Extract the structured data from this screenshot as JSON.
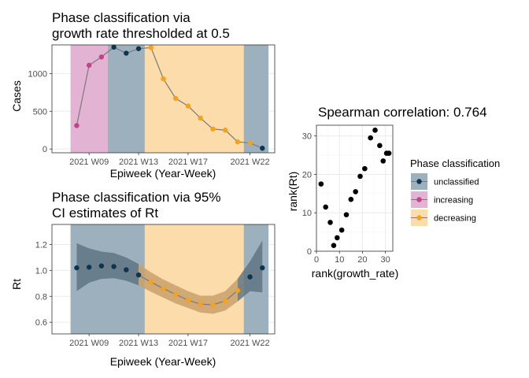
{
  "colors": {
    "unclassified": "#0b3551",
    "increasing": "#c2428c",
    "decreasing": "#f5a21c",
    "unclassified_band": "#9db0bd",
    "increasing_band": "#e2b3d3",
    "decreasing_band": "#fcdcaa",
    "line": "#7a7a7a",
    "ribbon_unclassified": "#607684",
    "ribbon_decreasing": "#c9a06b",
    "grid": "#ebebeb",
    "panel_border": "#333333"
  },
  "chart_data": [
    {
      "id": "phase-growth",
      "type": "line",
      "title": [
        "Phase classification via",
        "growth rate thresholded at 0.5"
      ],
      "xlabel": "Epiweek (Year-Week)",
      "ylabel": "Cases",
      "x_ticks": [
        {
          "week": 9,
          "label": "2021 W09"
        },
        {
          "week": 13,
          "label": "2021 W13"
        },
        {
          "week": 17,
          "label": "2021 W17"
        },
        {
          "week": 22,
          "label": "2021 W22"
        }
      ],
      "xlim": [
        6,
        24
      ],
      "ylim": [
        -50,
        1380
      ],
      "y_ticks": [
        0,
        500,
        1000
      ],
      "grid": true,
      "phase_bands": [
        {
          "from": 7.5,
          "to": 10.5,
          "phase": "increasing"
        },
        {
          "from": 10.5,
          "to": 13.5,
          "phase": "unclassified"
        },
        {
          "from": 13.5,
          "to": 21.5,
          "phase": "decreasing"
        },
        {
          "from": 21.5,
          "to": 23.5,
          "phase": "unclassified"
        }
      ],
      "points": [
        {
          "x": 8,
          "y": 310,
          "phase": "increasing"
        },
        {
          "x": 9,
          "y": 1110,
          "phase": "increasing"
        },
        {
          "x": 10,
          "y": 1220,
          "phase": "increasing"
        },
        {
          "x": 11,
          "y": 1350,
          "phase": "unclassified"
        },
        {
          "x": 12,
          "y": 1270,
          "phase": "unclassified"
        },
        {
          "x": 13,
          "y": 1330,
          "phase": "unclassified"
        },
        {
          "x": 14,
          "y": 1345,
          "phase": "decreasing"
        },
        {
          "x": 15,
          "y": 930,
          "phase": "decreasing"
        },
        {
          "x": 16,
          "y": 670,
          "phase": "decreasing"
        },
        {
          "x": 17,
          "y": 570,
          "phase": "decreasing"
        },
        {
          "x": 18,
          "y": 410,
          "phase": "decreasing"
        },
        {
          "x": 19,
          "y": 265,
          "phase": "decreasing"
        },
        {
          "x": 20,
          "y": 250,
          "phase": "decreasing"
        },
        {
          "x": 21,
          "y": 95,
          "phase": "decreasing"
        },
        {
          "x": 22,
          "y": 80,
          "phase": "decreasing"
        },
        {
          "x": 23,
          "y": 10,
          "phase": "unclassified"
        }
      ]
    },
    {
      "id": "phase-rt",
      "type": "line",
      "title": [
        "Phase classification via 95%",
        "CI estimates of Rt"
      ],
      "xlabel": "Epiweek (Year-Week)",
      "ylabel": "Rt",
      "x_ticks": [
        {
          "week": 9,
          "label": "2021 W09"
        },
        {
          "week": 13,
          "label": "2021 W13"
        },
        {
          "week": 17,
          "label": "2021 W17"
        },
        {
          "week": 22,
          "label": "2021 W22"
        }
      ],
      "xlim": [
        6,
        24
      ],
      "ylim": [
        0.51,
        1.355
      ],
      "y_ticks": [
        0.6,
        0.8,
        1.0,
        1.2
      ],
      "y_tick_labels": [
        "0.6",
        "0.8",
        "1.0",
        "1.2"
      ],
      "grid": true,
      "phase_bands": [
        {
          "from": 7.5,
          "to": 13.5,
          "phase": "unclassified"
        },
        {
          "from": 13.5,
          "to": 21.5,
          "phase": "decreasing"
        },
        {
          "from": 21.5,
          "to": 23.5,
          "phase": "unclassified"
        }
      ],
      "points": [
        {
          "x": 8,
          "y": 1.02,
          "lo": 0.84,
          "hi": 1.21,
          "phase": "unclassified"
        },
        {
          "x": 9,
          "y": 1.025,
          "lo": 0.905,
          "hi": 1.17,
          "phase": "unclassified"
        },
        {
          "x": 10,
          "y": 1.035,
          "lo": 0.935,
          "hi": 1.145,
          "phase": "unclassified"
        },
        {
          "x": 11,
          "y": 1.03,
          "lo": 0.94,
          "hi": 1.135,
          "phase": "unclassified"
        },
        {
          "x": 12,
          "y": 1.005,
          "lo": 0.92,
          "hi": 1.1,
          "phase": "unclassified"
        },
        {
          "x": 13,
          "y": 0.965,
          "lo": 0.885,
          "hi": 1.05,
          "phase": "unclassified"
        },
        {
          "x": 14,
          "y": 0.91,
          "lo": 0.835,
          "hi": 0.985,
          "phase": "decreasing"
        },
        {
          "x": 15,
          "y": 0.86,
          "lo": 0.79,
          "hi": 0.93,
          "phase": "decreasing"
        },
        {
          "x": 16,
          "y": 0.815,
          "lo": 0.745,
          "hi": 0.885,
          "phase": "decreasing"
        },
        {
          "x": 17,
          "y": 0.77,
          "lo": 0.71,
          "hi": 0.84,
          "phase": "decreasing"
        },
        {
          "x": 18,
          "y": 0.74,
          "lo": 0.675,
          "hi": 0.805,
          "phase": "decreasing"
        },
        {
          "x": 19,
          "y": 0.735,
          "lo": 0.665,
          "hi": 0.805,
          "phase": "decreasing"
        },
        {
          "x": 20,
          "y": 0.765,
          "lo": 0.69,
          "hi": 0.84,
          "phase": "decreasing"
        },
        {
          "x": 21,
          "y": 0.845,
          "lo": 0.76,
          "hi": 0.935,
          "phase": "decreasing"
        },
        {
          "x": 22,
          "y": 0.95,
          "lo": 0.84,
          "hi": 1.07,
          "phase": "unclassified"
        },
        {
          "x": 23,
          "y": 1.02,
          "lo": 0.83,
          "hi": 1.23,
          "phase": "unclassified"
        }
      ]
    },
    {
      "id": "spearman",
      "type": "scatter",
      "title": "Spearman correlation: 0.764",
      "xlabel": "rank(growth_rate)",
      "ylabel": "rank(Rt)",
      "xlim": [
        0,
        33.2
      ],
      "ylim": [
        0,
        32.8
      ],
      "x_ticks": [
        0,
        10,
        20,
        30
      ],
      "y_ticks": [
        0,
        10,
        20,
        30
      ],
      "grid": true,
      "x": [
        2,
        4,
        6,
        7.5,
        9,
        11,
        13,
        15,
        17,
        19,
        21,
        23.5,
        25.5,
        27.5,
        29,
        30.5,
        31.5
      ],
      "y": [
        17.5,
        11.5,
        7.5,
        1.5,
        3.5,
        5.5,
        9.5,
        13.5,
        15.5,
        19.5,
        21.5,
        29.5,
        31.5,
        27.5,
        23.5,
        25.5,
        25.5
      ]
    }
  ],
  "legend": {
    "title": "Phase classification",
    "position": "right",
    "items": [
      {
        "key": "unclassified",
        "label": "unclassified"
      },
      {
        "key": "increasing",
        "label": "increasing"
      },
      {
        "key": "decreasing",
        "label": "decreasing"
      }
    ]
  }
}
